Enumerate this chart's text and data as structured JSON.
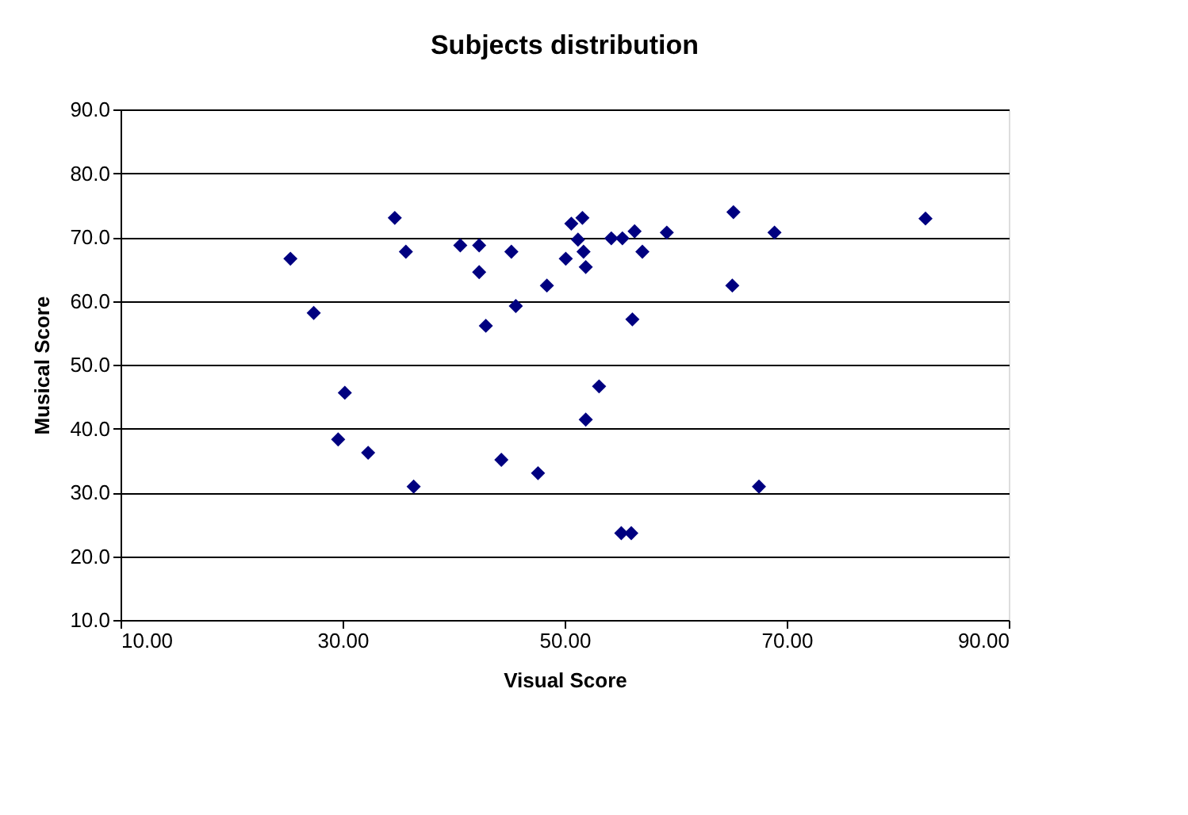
{
  "chart_data": {
    "type": "scatter",
    "title": "Subjects distribution",
    "xlabel": "Visual Score",
    "ylabel": "Musical Score",
    "marker": "diamond",
    "grid": "y",
    "legend": false,
    "xlim": [
      10,
      90
    ],
    "xticks": [
      {
        "value": 10,
        "label": "10.00"
      },
      {
        "value": 30,
        "label": "30.00"
      },
      {
        "value": 50,
        "label": "50.00"
      },
      {
        "value": 70,
        "label": "70.00"
      },
      {
        "value": 90,
        "label": "90.00"
      }
    ],
    "ylim": [
      10,
      90
    ],
    "yticks": [
      {
        "value": 10,
        "label": "10.0"
      },
      {
        "value": 20,
        "label": "20.0"
      },
      {
        "value": 30,
        "label": "30.0"
      },
      {
        "value": 40,
        "label": "40.0"
      },
      {
        "value": 50,
        "label": "50.0"
      },
      {
        "value": 60,
        "label": "60.0"
      },
      {
        "value": 70,
        "label": "70.0"
      },
      {
        "value": 80,
        "label": "80.0"
      },
      {
        "value": 90,
        "label": "90.0"
      }
    ],
    "series": [
      {
        "color": "#000080",
        "x": [
          25.3,
          27.4,
          30.2,
          29.6,
          32.3,
          36.4,
          34.7,
          35.7,
          40.6,
          42.3,
          42.3,
          42.9,
          45.2,
          45.6,
          44.3,
          47.6,
          48.4,
          50.1,
          50.6,
          51.6,
          51.2,
          51.7,
          51.9,
          51.9,
          53.1,
          54.2,
          55.2,
          56.3,
          57.0,
          56.1,
          55.1,
          56.0,
          59.2,
          65.2,
          65.1,
          68.9,
          67.5,
          82.5
        ],
        "values": [
          66.6,
          58.1,
          45.6,
          38.3,
          36.2,
          30.9,
          73.0,
          67.7,
          68.7,
          68.7,
          64.5,
          56.1,
          67.7,
          59.2,
          35.1,
          33.0,
          62.4,
          66.6,
          72.1,
          73.0,
          69.6,
          67.7,
          65.3,
          41.4,
          46.6,
          69.8,
          69.8,
          70.9,
          67.7,
          57.1,
          23.6,
          23.6,
          70.7,
          73.9,
          62.4,
          70.7,
          30.9,
          72.9
        ]
      }
    ]
  }
}
